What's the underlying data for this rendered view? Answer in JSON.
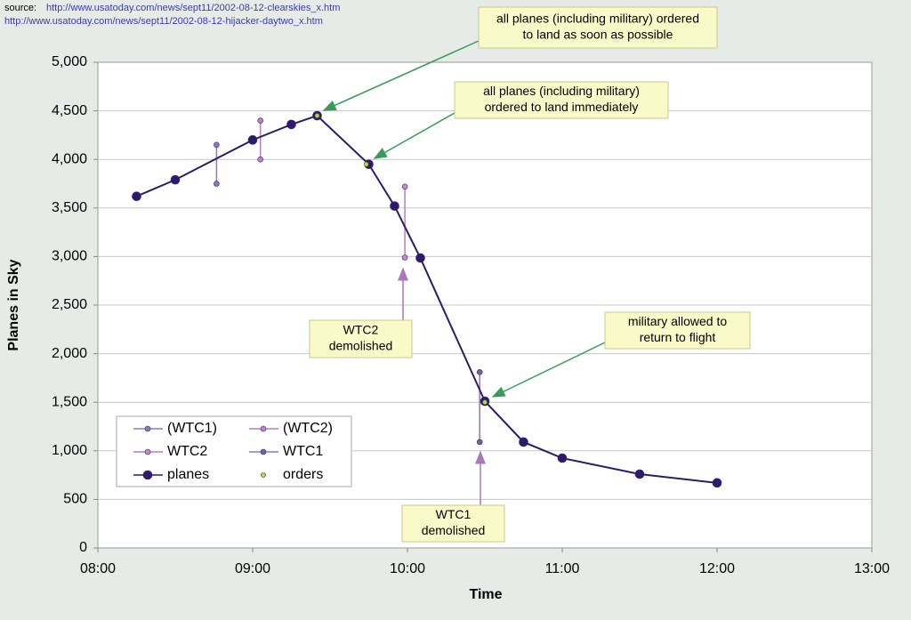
{
  "source": {
    "label": "source:",
    "links": [
      "http://www.usatoday.com/news/sept11/2002-08-12-clearskies_x.htm",
      "http://www.usatoday.com/news/sept11/2002-08-12-hijacker-daytwo_x.htm"
    ]
  },
  "chart_data": {
    "type": "line",
    "x_label": "Time",
    "y_label": "Planes in Sky",
    "xlim": [
      "08:00",
      "13:00"
    ],
    "xticks": [
      "08:00",
      "09:00",
      "10:00",
      "11:00",
      "12:00",
      "13:00"
    ],
    "ylim": [
      0,
      5000
    ],
    "yticks": [
      0,
      500,
      {
        "value": 1000,
        "label": "1,000"
      },
      {
        "value": 1500,
        "label": "1,500"
      },
      {
        "value": 2000,
        "label": "2,000"
      },
      {
        "value": 2500,
        "label": "2,500"
      },
      {
        "value": 3000,
        "label": "3,000"
      },
      {
        "value": 3500,
        "label": "3,500"
      },
      {
        "value": 4000,
        "label": "4,000"
      },
      {
        "value": 4500,
        "label": "4,500"
      },
      {
        "value": 5000,
        "label": "5,000"
      }
    ],
    "grid": true,
    "legend": "lower left",
    "series": [
      {
        "name": "(WTC1)",
        "color": "#9b72b5",
        "marker_color": "#8878c8",
        "marker_size": 3,
        "x": [
          "08:46",
          "08:46"
        ],
        "values": [
          4150,
          3750
        ]
      },
      {
        "name": "(WTC2)",
        "color": "#b57fc0",
        "marker_color": "#c080c8",
        "marker_size": 3,
        "x": [
          "09:03",
          "09:03"
        ],
        "values": [
          4400,
          4000
        ]
      },
      {
        "name": "WTC2",
        "color": "#b57fc0",
        "marker_color": "#c58ac5",
        "marker_size": 3,
        "x": [
          "09:59",
          "09:59"
        ],
        "values": [
          3720,
          2990
        ]
      },
      {
        "name": "WTC1",
        "color": "#9b72b5",
        "marker_color": "#7062a8",
        "marker_size": 3,
        "x": [
          "10:28",
          "10:28"
        ],
        "values": [
          1810,
          1090
        ]
      },
      {
        "name": "planes",
        "color": "#2e1a6b",
        "marker_color": "#2e1a6b",
        "marker_size": 5,
        "x": [
          "08:15",
          "08:30",
          "09:00",
          "09:15",
          "09:25",
          "09:45",
          "09:55",
          "10:05",
          "10:30",
          "10:45",
          "11:00",
          "11:30",
          "12:00"
        ],
        "values": [
          3620,
          3790,
          4200,
          4360,
          4450,
          3950,
          3520,
          2985,
          1510,
          1090,
          925,
          760,
          670
        ]
      },
      {
        "name": "orders",
        "color": "#a8e040",
        "marker_color": "#a8e040",
        "marker_size": 2.5,
        "line": false,
        "x": [
          "09:25",
          "09:44",
          "10:30"
        ],
        "values": [
          4450,
          3950,
          1500
        ]
      }
    ],
    "annotations": [
      {
        "lines": [
          "all planes (including military) ordered",
          "to land as soon as possible"
        ],
        "color": "#3a9a5a"
      },
      {
        "lines": [
          "all planes (including military)",
          "ordered to land immediately"
        ],
        "color": "#3a9a5a"
      },
      {
        "lines": [
          "WTC2",
          "demolished"
        ],
        "color": "#a878b8"
      },
      {
        "lines": [
          "military allowed to",
          "return to flight"
        ],
        "color": "#3a9a5a"
      },
      {
        "lines": [
          "WTC1",
          "demolished"
        ],
        "color": "#a878b8"
      }
    ]
  }
}
